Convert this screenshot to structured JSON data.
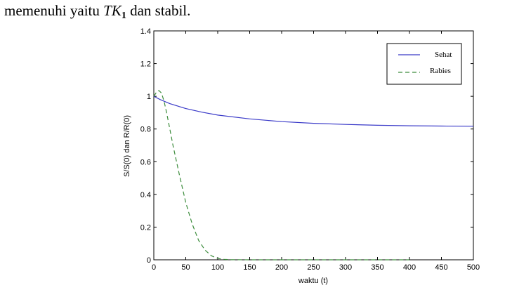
{
  "intro_line": {
    "prefix": "memenuhi yaitu ",
    "math_base": "TK",
    "math_sub": "1",
    "suffix": " dan stabil."
  },
  "chart_data": {
    "type": "line",
    "xlabel": "waktu (t)",
    "ylabel": "S/S(0) dan R/R(0)",
    "xlim": [
      0,
      500
    ],
    "ylim": [
      0,
      1.4
    ],
    "xticks": [
      0,
      50,
      100,
      150,
      200,
      250,
      300,
      350,
      400,
      450,
      500
    ],
    "yticks": [
      0,
      0.2,
      0.4,
      0.6,
      0.8,
      1,
      1.2,
      1.4
    ],
    "grid": false,
    "legend_position": "top-right",
    "series": [
      {
        "name": "Sehat",
        "color": "#3a3ac8",
        "dash": "solid",
        "x": [
          0,
          10,
          25,
          50,
          75,
          100,
          150,
          200,
          250,
          300,
          350,
          400,
          450,
          500
        ],
        "y": [
          1.0,
          0.98,
          0.955,
          0.925,
          0.903,
          0.885,
          0.862,
          0.845,
          0.835,
          0.828,
          0.823,
          0.82,
          0.818,
          0.817
        ]
      },
      {
        "name": "Rabies",
        "color": "#3c8c3c",
        "dash": "dashed",
        "x": [
          0,
          5,
          8,
          12,
          16,
          20,
          25,
          30,
          40,
          50,
          60,
          70,
          80,
          90,
          100,
          110,
          120,
          150,
          200,
          300,
          400
        ],
        "y": [
          1.0,
          1.03,
          1.035,
          1.02,
          0.97,
          0.9,
          0.8,
          0.7,
          0.52,
          0.35,
          0.22,
          0.12,
          0.06,
          0.025,
          0.008,
          0.003,
          0.001,
          0.0,
          0.0,
          0.0,
          0.0
        ]
      }
    ]
  }
}
